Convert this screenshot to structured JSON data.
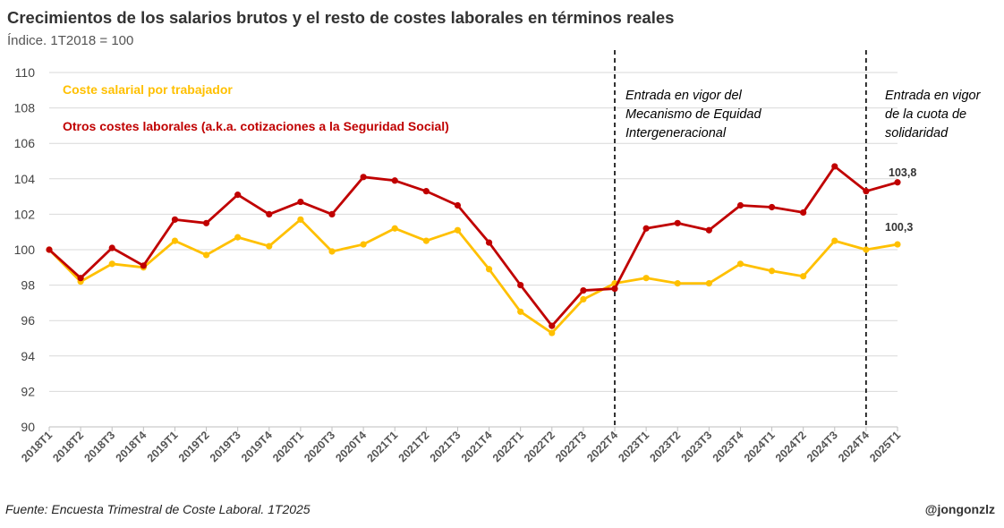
{
  "header": {
    "title": "Crecimientos de los salarios brutos y el resto de costes laborales en términos reales",
    "subtitle": "Índice. 1T2018 = 100"
  },
  "footer": {
    "source": "Fuente: Encuesta Trimestral de Coste Laboral. 1T2025",
    "handle": "@jongonzlz"
  },
  "annotations": {
    "vline1": [
      "Entrada en vigor del",
      "Mecanismo de Equidad",
      "Intergeneracional"
    ],
    "vline2": [
      "Entrada en vigor",
      "de la cuota de",
      "solidaridad"
    ],
    "vline_categories": [
      "2022T4",
      "2024T4"
    ],
    "end_label_red": "103,8",
    "end_label_yellow": "100,3"
  },
  "colors": {
    "yellow": "#FFC000",
    "red": "#C00000",
    "grid": "#D9D9D9"
  },
  "chart_data": {
    "type": "line",
    "title": "Crecimientos de los salarios brutos y el resto de costes laborales en términos reales",
    "ylabel": "Índice. 1T2018 = 100",
    "xlabel": "",
    "ylim": [
      90,
      110
    ],
    "yticks": [
      90,
      92,
      94,
      96,
      98,
      100,
      102,
      104,
      106,
      108,
      110
    ],
    "grid": true,
    "legend": "top-left",
    "categories": [
      "2018T1",
      "2018T2",
      "2018T3",
      "2018T4",
      "2019T1",
      "2019T2",
      "2019T3",
      "2019T4",
      "2020T1",
      "2020T3",
      "2020T4",
      "2021T1",
      "2021T2",
      "2021T3",
      "2021T4",
      "2022T1",
      "2022T2",
      "2022T3",
      "2022T4",
      "2023T1",
      "2023T2",
      "2023T3",
      "2023T4",
      "2024T1",
      "2024T2",
      "2024T3",
      "2024T4",
      "2025T1"
    ],
    "series": [
      {
        "name": "Coste salarial por trabajador",
        "color": "#FFC000",
        "values": [
          100.0,
          98.2,
          99.2,
          99.0,
          100.5,
          99.7,
          100.7,
          100.2,
          101.7,
          99.9,
          100.3,
          101.2,
          100.5,
          101.1,
          98.9,
          96.5,
          95.3,
          97.2,
          98.1,
          98.4,
          98.1,
          98.1,
          99.2,
          98.8,
          98.5,
          100.5,
          100.0,
          100.3
        ]
      },
      {
        "name": "Otros costes laborales (a.k.a. cotizaciones a la Seguridad Social)",
        "color": "#C00000",
        "values": [
          100.0,
          98.4,
          100.1,
          99.1,
          101.7,
          101.5,
          103.1,
          102.0,
          102.7,
          102.0,
          104.1,
          103.9,
          103.3,
          102.5,
          100.4,
          98.0,
          95.7,
          97.7,
          97.8,
          101.2,
          101.5,
          101.1,
          102.5,
          102.4,
          102.1,
          104.7,
          103.3,
          103.8
        ]
      }
    ]
  }
}
